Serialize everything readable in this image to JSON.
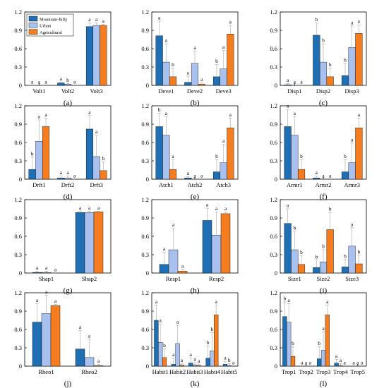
{
  "colors": {
    "Mountain-hilly": "#1f6fb5",
    "Urban": "#a9c1ee",
    "Agricultural": "#f57c1f",
    "error": "#b3b3b3",
    "axis": "#000000"
  },
  "legend": [
    "Mountain-hilly",
    "Urban",
    "Agricultural"
  ],
  "chart_data": [
    {
      "type": "bar",
      "panel_label": "(a)",
      "categories": [
        "Volt1",
        "Volt2",
        "Volt3"
      ],
      "ylim": [
        0,
        1.2
      ],
      "yticks": [
        "0",
        "0.3",
        "0.6",
        "0.9",
        "1.2"
      ],
      "legend": "top-left",
      "series": [
        {
          "name": "Mountain-hilly",
          "values": [
            0,
            0.04,
            0.96
          ],
          "err": [
            0,
            0.01,
            0.06
          ]
        },
        {
          "name": "Urban",
          "values": [
            0,
            0.02,
            0.98
          ],
          "err": [
            0,
            0.01,
            0.04
          ]
        },
        {
          "name": "Agricultural",
          "values": [
            0,
            0,
            0.98
          ],
          "err": [
            0,
            0,
            0.02
          ]
        }
      ],
      "labels": [
        [
          "a",
          "a",
          "a"
        ],
        [
          "a",
          "b",
          "a"
        ],
        [
          "a",
          "a",
          "a"
        ]
      ]
    },
    {
      "type": "bar",
      "panel_label": "(b)",
      "categories": [
        "Deve1",
        "Deve2",
        "Deve3"
      ],
      "ylim": [
        0,
        1.2
      ],
      "yticks": [
        "0",
        "0.3",
        "0.6",
        "0.9",
        "1.2"
      ],
      "series": [
        {
          "name": "Mountain-hilly",
          "values": [
            0.81,
            0.05,
            0.14
          ],
          "err": [
            0.24,
            0.1,
            0.2
          ]
        },
        {
          "name": "Urban",
          "values": [
            0.38,
            0.36,
            0.27
          ],
          "err": [
            0.3,
            0.2,
            0.3
          ]
        },
        {
          "name": "Agricultural",
          "values": [
            0.14,
            0.02,
            0.84
          ],
          "err": [
            0.14,
            0.02,
            0.14
          ]
        }
      ],
      "labels": [
        [
          "a",
          "a",
          "b"
        ],
        [
          "a",
          "a",
          "a"
        ],
        [
          "b",
          "a",
          "a"
        ]
      ]
    },
    {
      "type": "bar",
      "panel_label": "(c)",
      "categories": [
        "Disp1",
        "Disp2",
        "Disp3"
      ],
      "ylim": [
        0,
        1.2
      ],
      "yticks": [
        "0",
        "0.3",
        "0.6",
        "0.9",
        "1.2"
      ],
      "series": [
        {
          "name": "Mountain-hilly",
          "values": [
            0.01,
            0.82,
            0.16
          ],
          "err": [
            0.02,
            0.2,
            0.2
          ]
        },
        {
          "name": "Urban",
          "values": [
            0,
            0.38,
            0.62
          ],
          "err": [
            0,
            0.3,
            0.35
          ]
        },
        {
          "name": "Agricultural",
          "values": [
            0,
            0.14,
            0.85
          ],
          "err": [
            0,
            0.14,
            0.14
          ]
        }
      ],
      "labels": [
        [
          "a",
          "b",
          "b"
        ],
        [
          "a",
          "b",
          "a"
        ],
        [
          "a",
          "b",
          "a"
        ]
      ]
    },
    {
      "type": "bar",
      "panel_label": "(d)",
      "categories": [
        "Drft1",
        "Drft2",
        "Drft3"
      ],
      "ylim": [
        0,
        1.2
      ],
      "yticks": [
        "0",
        "0.3",
        "0.6",
        "0.9",
        "1.2"
      ],
      "series": [
        {
          "name": "Mountain-hilly",
          "values": [
            0.16,
            0.02,
            0.82
          ],
          "err": [
            0.2,
            0.03,
            0.22
          ]
        },
        {
          "name": "Urban",
          "values": [
            0.62,
            0.02,
            0.37
          ],
          "err": [
            0.35,
            0.03,
            0.35
          ]
        },
        {
          "name": "Agricultural",
          "values": [
            0.86,
            0,
            0.14
          ],
          "err": [
            0.14,
            0,
            0.14
          ]
        }
      ],
      "labels": [
        [
          "b",
          "a",
          "a"
        ],
        [
          "a",
          "a",
          "a"
        ],
        [
          "a",
          "a",
          "b"
        ]
      ]
    },
    {
      "type": "bar",
      "panel_label": "(e)",
      "categories": [
        "Atch1",
        "Atch2",
        "Atch3"
      ],
      "ylim": [
        0,
        1.2
      ],
      "yticks": [
        "0",
        "0.3",
        "0.6",
        "0.9",
        "1.2"
      ],
      "series": [
        {
          "name": "Mountain-hilly",
          "values": [
            0.86,
            0.02,
            0.12
          ],
          "err": [
            0.22,
            0.02,
            0.2
          ]
        },
        {
          "name": "Urban",
          "values": [
            0.72,
            0,
            0.27
          ],
          "err": [
            0.3,
            0,
            0.3
          ]
        },
        {
          "name": "Agricultural",
          "values": [
            0.16,
            0,
            0.84
          ],
          "err": [
            0.16,
            0,
            0.16
          ]
        }
      ],
      "labels": [
        [
          "b",
          "a",
          "b"
        ],
        [
          "a",
          "a",
          "a"
        ],
        [
          "a",
          "a",
          "a"
        ]
      ]
    },
    {
      "type": "bar",
      "panel_label": "(f)",
      "categories": [
        "Armr1",
        "Armr2",
        "Armr3"
      ],
      "ylim": [
        0,
        1.2
      ],
      "yticks": [
        "0",
        "0.3",
        "0.6",
        "0.9",
        "1.2"
      ],
      "series": [
        {
          "name": "Mountain-hilly",
          "values": [
            0.86,
            0.02,
            0.12
          ],
          "err": [
            0.28,
            0.03,
            0.2
          ]
        },
        {
          "name": "Urban",
          "values": [
            0.72,
            0,
            0.27
          ],
          "err": [
            0.3,
            0,
            0.32
          ]
        },
        {
          "name": "Agricultural",
          "values": [
            0.16,
            0,
            0.84
          ],
          "err": [
            0.16,
            0,
            0.16
          ]
        }
      ],
      "labels": [
        [
          "a",
          "a",
          "b"
        ],
        [
          "a",
          "a",
          "a"
        ],
        [
          "b",
          "a",
          "a"
        ]
      ]
    },
    {
      "type": "bar",
      "panel_label": "(g)",
      "categories": [
        "Shap1",
        "Shap2"
      ],
      "ylim": [
        0,
        1.2
      ],
      "yticks": [
        "0",
        "0.3",
        "0.6",
        "0.9",
        "1.2"
      ],
      "series": [
        {
          "name": "Mountain-hilly",
          "values": [
            0.01,
            0.99
          ],
          "err": [
            0.02,
            0.02
          ]
        },
        {
          "name": "Urban",
          "values": [
            0.01,
            0.99
          ],
          "err": [
            0.02,
            0.02
          ]
        },
        {
          "name": "Agricultural",
          "values": [
            0,
            1.0
          ],
          "err": [
            0,
            0.01
          ]
        }
      ],
      "labels": [
        [
          "a",
          "a"
        ],
        [
          "a",
          "a"
        ],
        [
          "a",
          "a"
        ]
      ]
    },
    {
      "type": "bar",
      "panel_label": "(h)",
      "categories": [
        "Resp1",
        "Resp2"
      ],
      "ylim": [
        0,
        1.2
      ],
      "yticks": [
        "0",
        "0.3",
        "0.6",
        "0.9",
        "1.2"
      ],
      "series": [
        {
          "name": "Mountain-hilly",
          "values": [
            0.14,
            0.86
          ],
          "err": [
            0.2,
            0.2
          ]
        },
        {
          "name": "Urban",
          "values": [
            0.38,
            0.62
          ],
          "err": [
            0.35,
            0.38
          ]
        },
        {
          "name": "Agricultural",
          "values": [
            0.03,
            0.97
          ],
          "err": [
            0.03,
            0.03
          ]
        }
      ],
      "labels": [
        [
          "a",
          "a"
        ],
        [
          "a",
          "a"
        ],
        [
          "a",
          "a"
        ]
      ]
    },
    {
      "type": "bar",
      "panel_label": "(i)",
      "categories": [
        "Size1",
        "Size2",
        "Size3"
      ],
      "ylim": [
        0,
        1.2
      ],
      "yticks": [
        "0",
        "0.3",
        "0.6",
        "0.9",
        "1.2"
      ],
      "series": [
        {
          "name": "Mountain-hilly",
          "values": [
            0.81,
            0.09,
            0.1
          ],
          "err": [
            0.24,
            0.12,
            0.12
          ]
        },
        {
          "name": "Urban",
          "values": [
            0.38,
            0.18,
            0.44
          ],
          "err": [
            0.3,
            0.2,
            0.3
          ]
        },
        {
          "name": "Agricultural",
          "values": [
            0.14,
            0.71,
            0.15
          ],
          "err": [
            0.14,
            0.28,
            0.14
          ]
        }
      ],
      "labels": [
        [
          "a",
          "b",
          "b"
        ],
        [
          "b",
          "b",
          "a"
        ],
        [
          "b",
          "b",
          "b"
        ]
      ]
    },
    {
      "type": "bar",
      "panel_label": "(j)",
      "categories": [
        "Rheo1",
        "Rheo2"
      ],
      "ylim": [
        0,
        1.2
      ],
      "yticks": [
        "0",
        "0.3",
        "0.6",
        "0.9",
        "1.2"
      ],
      "series": [
        {
          "name": "Mountain-hilly",
          "values": [
            0.72,
            0.28
          ],
          "err": [
            0.3,
            0.3
          ]
        },
        {
          "name": "Urban",
          "values": [
            0.86,
            0.14
          ],
          "err": [
            0.3,
            0.3
          ]
        },
        {
          "name": "Agricultural",
          "values": [
            0.99,
            0.01
          ],
          "err": [
            0.02,
            0.02
          ]
        }
      ],
      "labels": [
        [
          "a",
          "a"
        ],
        [
          "a",
          "a"
        ],
        [
          "a",
          "a"
        ]
      ]
    },
    {
      "type": "bar",
      "panel_label": "(k)",
      "categories": [
        "Habit1",
        "Habit2",
        "Habit3",
        "Habit4",
        "Habit5"
      ],
      "ylim": [
        0,
        1.2
      ],
      "yticks": [
        "0",
        "0.3",
        "0.6",
        "0.9",
        "1.2"
      ],
      "series": [
        {
          "name": "Mountain-hilly",
          "values": [
            0.75,
            0.03,
            0.05,
            0.13,
            0.03
          ],
          "err": [
            0.25,
            0.1,
            0.08,
            0.2,
            0.05
          ]
        },
        {
          "name": "Urban",
          "values": [
            0.39,
            0.37,
            0.02,
            0.25,
            0.01
          ],
          "err": [
            0.3,
            0.3,
            0.04,
            0.3,
            0.03
          ]
        },
        {
          "name": "Agricultural",
          "values": [
            0.14,
            0.02,
            0.01,
            0.84,
            0
          ],
          "err": [
            0.14,
            0.02,
            0.02,
            0.16,
            0
          ]
        }
      ],
      "labels": [
        [
          "a",
          "a",
          "a",
          "b",
          "a"
        ],
        [
          "a",
          "a",
          "a",
          "b",
          "b"
        ],
        [
          "b",
          "a",
          "a",
          "a",
          "a"
        ]
      ]
    },
    {
      "type": "bar",
      "panel_label": "(l)",
      "categories": [
        "Trop1",
        "Trop2",
        "Trop3",
        "Trop4",
        "Trop5"
      ],
      "ylim": [
        0,
        1.2
      ],
      "yticks": [
        "0",
        "0.3",
        "0.6",
        "0.9",
        "1.2"
      ],
      "series": [
        {
          "name": "Mountain-hilly",
          "values": [
            0.81,
            0,
            0.12,
            0.05,
            0
          ],
          "err": [
            0.24,
            0,
            0.2,
            0.06,
            0
          ]
        },
        {
          "name": "Urban",
          "values": [
            0.72,
            0,
            0.26,
            0.01,
            0
          ],
          "err": [
            0.3,
            0,
            0.3,
            0.03,
            0
          ]
        },
        {
          "name": "Agricultural",
          "values": [
            0.16,
            0,
            0.84,
            0,
            0
          ],
          "err": [
            0.16,
            0,
            0.16,
            0,
            0
          ]
        }
      ],
      "labels": [
        [
          "b",
          "a",
          "b",
          "a",
          "a"
        ],
        [
          "a",
          "a",
          "a",
          "a",
          "a"
        ],
        [
          "b",
          "a",
          "a",
          "a",
          "a"
        ]
      ]
    }
  ]
}
